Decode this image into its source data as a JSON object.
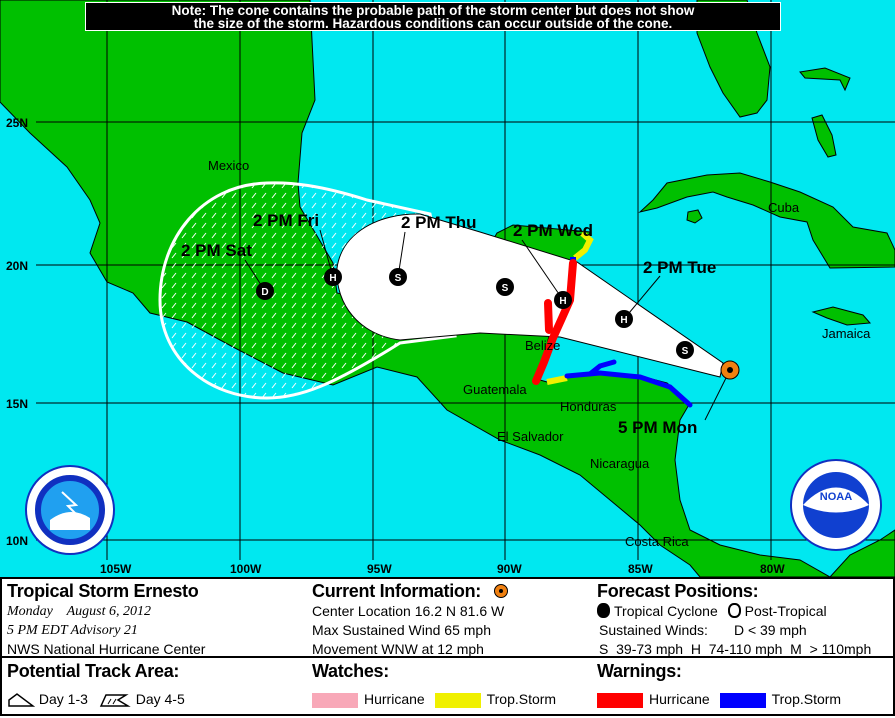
{
  "note": {
    "line1": "Note: The cone contains the probable path of the storm center but does not show",
    "line2": "the size of the storm. Hazardous conditions can occur outside of the cone."
  },
  "grid": {
    "lat_labels": [
      "25N",
      "20N",
      "15N",
      "10N"
    ],
    "lon_labels": [
      "105W",
      "100W",
      "95W",
      "90W",
      "85W",
      "80W"
    ]
  },
  "places": [
    "Mexico",
    "Cuba",
    "Jamaica",
    "Belize",
    "Guatemala",
    "Honduras",
    "El Salvador",
    "Nicaragua",
    "Costa Rica"
  ],
  "forecast_points": [
    {
      "label": "5 PM Mon",
      "symbol": "current"
    },
    {
      "label": "",
      "symbol": "S"
    },
    {
      "label": "2 PM Tue",
      "symbol": "H"
    },
    {
      "label": "2 PM Wed",
      "symbol": "H"
    },
    {
      "label": "",
      "symbol": "S"
    },
    {
      "label": "2 PM Thu",
      "symbol": "S"
    },
    {
      "label": "2 PM Fri",
      "symbol": "H"
    },
    {
      "label": "2 PM Sat",
      "symbol": "D"
    }
  ],
  "colors": {
    "ocean": "#00E8F0",
    "land": "#00C000",
    "cone": "#FFFFFF",
    "current": "#F08010",
    "hurricane_watch": "#F8A8B8",
    "ts_watch": "#F0F000",
    "hurricane_warning": "#FF0000",
    "ts_warning": "#0000FF"
  },
  "logos": {
    "left": "NATIONAL WEATHER SERVICE",
    "right": "NOAA"
  },
  "legend": {
    "storm_name": "Tropical Storm Ernesto",
    "date": "Monday    August 6, 2012",
    "advisory": "5 PM EDT Advisory 21",
    "center": "NWS National Hurricane Center",
    "current_title": "Current Information:",
    "location": "Center Location 16.2 N  81.6 W",
    "wind": "Max Sustained Wind  65 mph",
    "movement": "Movement WNW at  12 mph",
    "forecast_title": "Forecast Positions:",
    "tropical": "Tropical Cyclone",
    "post_tropical": "Post-Tropical",
    "sustained": "Sustained Winds:",
    "d_range": "D  < 39 mph",
    "s_h_m": "S  39-73 mph  H  74-110 mph  M  > 110mph",
    "track_title": "Potential Track Area:",
    "day13": "Day 1-3",
    "day45": "Day 4-5",
    "watches_title": "Watches:",
    "watch_hurricane": "Hurricane",
    "watch_ts": "Trop.Storm",
    "warnings_title": "Warnings:",
    "warn_hurricane": "Hurricane",
    "warn_ts": "Trop.Storm"
  }
}
